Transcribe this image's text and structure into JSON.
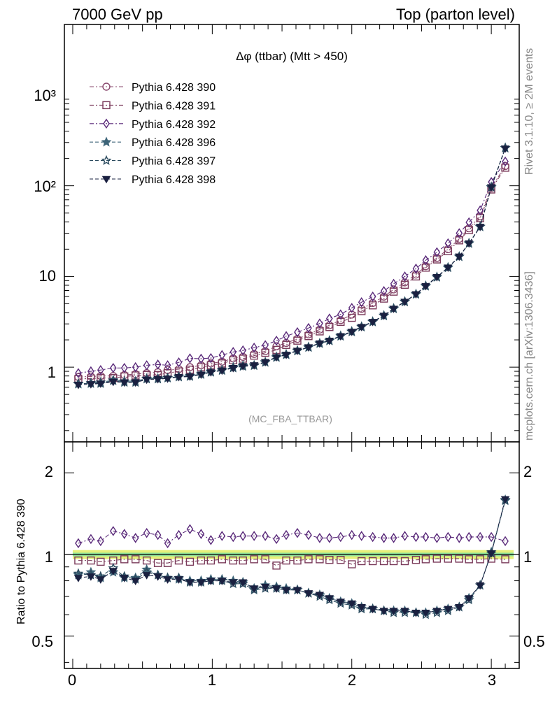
{
  "header": {
    "left": "7000 GeV pp",
    "right": "Top (parton level)"
  },
  "side_labels": {
    "rivet": "Rivet 3.1.10, ≥ 2M events",
    "source": "mcplots.cern.ch [arXiv:1306.3436]"
  },
  "main_panel": {
    "title": "Δφ (ttbar) (Mtt > 450)",
    "analysis_tag": "(MC_FBA_TTBAR)",
    "y_tick_labels": [
      "1",
      "10",
      "10²",
      "10³"
    ]
  },
  "ratio_panel": {
    "ylabel": "Ratio to Pythia 6.428 390",
    "y_tick_labels": [
      "0.5",
      "1",
      "2"
    ],
    "x_tick_labels": [
      "0",
      "1",
      "2",
      "3"
    ]
  },
  "chart_data": [
    {
      "type": "line",
      "yscale": "log",
      "xlim": [
        -0.06,
        3.2
      ],
      "ylim": [
        0.15,
        6000
      ],
      "x": [
        0.04,
        0.13,
        0.2,
        0.29,
        0.37,
        0.45,
        0.53,
        0.61,
        0.68,
        0.76,
        0.84,
        0.92,
        0.99,
        1.07,
        1.15,
        1.22,
        1.3,
        1.38,
        1.46,
        1.53,
        1.61,
        1.69,
        1.77,
        1.84,
        1.92,
        2.0,
        2.07,
        2.15,
        2.23,
        2.3,
        2.38,
        2.46,
        2.53,
        2.61,
        2.69,
        2.77,
        2.84,
        2.92,
        3.0,
        3.1
      ],
      "series": [
        {
          "name": "Pythia 6.428 390",
          "color": "#8a4a6e",
          "marker": "circle",
          "values": [
            0.78,
            0.79,
            0.8,
            0.8,
            0.82,
            0.84,
            0.86,
            0.88,
            0.93,
            0.95,
            1.0,
            1.05,
            1.1,
            1.15,
            1.25,
            1.3,
            1.4,
            1.5,
            1.7,
            1.85,
            2.05,
            2.3,
            2.6,
            2.9,
            3.3,
            3.8,
            4.4,
            5.1,
            6.0,
            7.2,
            8.6,
            10.5,
            13,
            16,
            20,
            26,
            34,
            46,
            95,
            165
          ]
        },
        {
          "name": "Pythia 6.428 391",
          "color": "#7a3a5a",
          "marker": "square",
          "values": [
            0.74,
            0.75,
            0.76,
            0.76,
            0.79,
            0.81,
            0.82,
            0.82,
            0.86,
            0.9,
            0.94,
            1.0,
            1.05,
            1.1,
            1.19,
            1.24,
            1.34,
            1.44,
            1.55,
            1.76,
            1.96,
            2.2,
            2.48,
            2.77,
            3.16,
            3.5,
            4.15,
            4.8,
            5.7,
            6.8,
            8.1,
            10,
            12.5,
            15.4,
            19,
            25,
            32.5,
            44,
            91,
            158
          ]
        },
        {
          "name": "Pythia 6.428 392",
          "color": "#5a2a7a",
          "marker": "diamond",
          "values": [
            0.86,
            0.9,
            0.93,
            0.98,
            0.98,
            1.0,
            1.05,
            1.07,
            1.05,
            1.13,
            1.25,
            1.24,
            1.26,
            1.36,
            1.47,
            1.53,
            1.64,
            1.75,
            1.96,
            2.2,
            2.43,
            2.7,
            3.03,
            3.44,
            3.82,
            4.5,
            5.2,
            6.0,
            6.9,
            8.3,
            10.0,
            12.2,
            15.1,
            18.5,
            23.2,
            30,
            39.5,
            53.5,
            110,
            185
          ]
        },
        {
          "name": "Pythia 6.428 396",
          "color": "#3d6478",
          "marker": "star",
          "values": [
            0.65,
            0.67,
            0.68,
            0.72,
            0.7,
            0.7,
            0.75,
            0.75,
            0.76,
            0.79,
            0.8,
            0.84,
            0.89,
            0.93,
            1.0,
            1.04,
            1.05,
            1.14,
            1.3,
            1.39,
            1.53,
            1.67,
            1.84,
            1.97,
            2.22,
            2.48,
            2.8,
            3.18,
            3.72,
            4.45,
            5.3,
            6.4,
            7.9,
            9.9,
            12.6,
            16.6,
            23.3,
            35.5,
            97,
            262
          ]
        },
        {
          "name": "Pythia 6.428 397",
          "color": "#2a4a5e",
          "marker": "star-open",
          "values": [
            0.66,
            0.66,
            0.66,
            0.71,
            0.68,
            0.68,
            0.74,
            0.74,
            0.76,
            0.78,
            0.79,
            0.83,
            0.88,
            0.92,
            0.98,
            1.02,
            1.04,
            1.13,
            1.28,
            1.37,
            1.51,
            1.65,
            1.82,
            1.95,
            2.19,
            2.45,
            2.77,
            3.15,
            3.68,
            4.4,
            5.25,
            6.35,
            7.8,
            9.8,
            12.5,
            16.5,
            23.1,
            35.2,
            96,
            260
          ]
        },
        {
          "name": "Pythia 6.428 398",
          "color": "#1a2040",
          "marker": "triangle-down",
          "values": [
            0.64,
            0.65,
            0.66,
            0.69,
            0.68,
            0.68,
            0.73,
            0.74,
            0.75,
            0.78,
            0.79,
            0.83,
            0.88,
            0.92,
            0.98,
            1.03,
            1.05,
            1.14,
            1.29,
            1.37,
            1.52,
            1.66,
            1.83,
            1.96,
            2.2,
            2.46,
            2.78,
            3.16,
            3.7,
            4.42,
            5.27,
            6.38,
            7.85,
            9.85,
            12.55,
            16.6,
            23.2,
            35.3,
            96.5,
            258
          ]
        }
      ]
    },
    {
      "type": "line",
      "yscale": "log",
      "xlim": [
        -0.06,
        3.2
      ],
      "ylim": [
        0.38,
        2.6
      ],
      "reference_band": {
        "center": 1.0,
        "outer": [
          0.962,
          1.038
        ],
        "inner": [
          0.985,
          1.015
        ],
        "color_outer": "#e6f07a",
        "color_inner": "#8fe39a"
      },
      "x": [
        0.04,
        0.13,
        0.2,
        0.29,
        0.37,
        0.45,
        0.53,
        0.61,
        0.68,
        0.76,
        0.84,
        0.92,
        0.99,
        1.07,
        1.15,
        1.22,
        1.3,
        1.38,
        1.46,
        1.53,
        1.61,
        1.69,
        1.77,
        1.84,
        1.92,
        2.0,
        2.07,
        2.15,
        2.23,
        2.3,
        2.38,
        2.46,
        2.53,
        2.61,
        2.69,
        2.77,
        2.84,
        2.92,
        3.0,
        3.1
      ],
      "series": [
        {
          "name": "Pythia 6.428 391",
          "color": "#7a3a5a",
          "marker": "square",
          "values": [
            0.95,
            0.95,
            0.94,
            0.95,
            0.96,
            0.96,
            0.95,
            0.93,
            0.93,
            0.95,
            0.94,
            0.95,
            0.95,
            0.96,
            0.95,
            0.95,
            0.96,
            0.96,
            0.91,
            0.95,
            0.95,
            0.96,
            0.96,
            0.955,
            0.955,
            0.92,
            0.945,
            0.945,
            0.945,
            0.945,
            0.945,
            0.955,
            0.96,
            0.965,
            0.965,
            0.965,
            0.96,
            0.96,
            0.965,
            0.96
          ]
        },
        {
          "name": "Pythia 6.428 392",
          "color": "#5a2a7a",
          "marker": "diamond",
          "values": [
            1.1,
            1.14,
            1.12,
            1.22,
            1.19,
            1.15,
            1.2,
            1.18,
            1.1,
            1.18,
            1.24,
            1.19,
            1.13,
            1.17,
            1.16,
            1.17,
            1.17,
            1.17,
            1.14,
            1.18,
            1.2,
            1.18,
            1.15,
            1.15,
            1.16,
            1.18,
            1.17,
            1.16,
            1.15,
            1.15,
            1.17,
            1.16,
            1.16,
            1.15,
            1.16,
            1.15,
            1.16,
            1.16,
            1.16,
            1.12
          ]
        },
        {
          "name": "Pythia 6.428 396",
          "color": "#3d6478",
          "marker": "star",
          "values": [
            0.84,
            0.86,
            0.82,
            0.86,
            0.82,
            0.82,
            0.88,
            0.84,
            0.82,
            0.81,
            0.8,
            0.8,
            0.81,
            0.81,
            0.8,
            0.79,
            0.75,
            0.77,
            0.76,
            0.75,
            0.74,
            0.72,
            0.71,
            0.69,
            0.67,
            0.66,
            0.64,
            0.63,
            0.62,
            0.62,
            0.62,
            0.61,
            0.61,
            0.62,
            0.63,
            0.64,
            0.69,
            0.77,
            1.02,
            1.59
          ]
        },
        {
          "name": "Pythia 6.428 397",
          "color": "#2a4a5e",
          "marker": "star-open",
          "values": [
            0.85,
            0.84,
            0.83,
            0.89,
            0.83,
            0.81,
            0.86,
            0.84,
            0.82,
            0.82,
            0.79,
            0.79,
            0.8,
            0.8,
            0.78,
            0.78,
            0.74,
            0.75,
            0.75,
            0.74,
            0.74,
            0.72,
            0.7,
            0.68,
            0.66,
            0.65,
            0.63,
            0.63,
            0.62,
            0.61,
            0.61,
            0.61,
            0.6,
            0.61,
            0.62,
            0.64,
            0.68,
            0.77,
            1.01,
            1.58
          ]
        },
        {
          "name": "Pythia 6.428 398",
          "color": "#1a2040",
          "marker": "triangle-down",
          "values": [
            0.82,
            0.83,
            0.81,
            0.87,
            0.82,
            0.8,
            0.84,
            0.83,
            0.81,
            0.81,
            0.79,
            0.79,
            0.8,
            0.8,
            0.79,
            0.79,
            0.75,
            0.76,
            0.75,
            0.74,
            0.74,
            0.72,
            0.71,
            0.69,
            0.67,
            0.66,
            0.64,
            0.63,
            0.62,
            0.62,
            0.62,
            0.61,
            0.61,
            0.62,
            0.63,
            0.64,
            0.69,
            0.77,
            1.01,
            1.6
          ]
        }
      ]
    }
  ]
}
